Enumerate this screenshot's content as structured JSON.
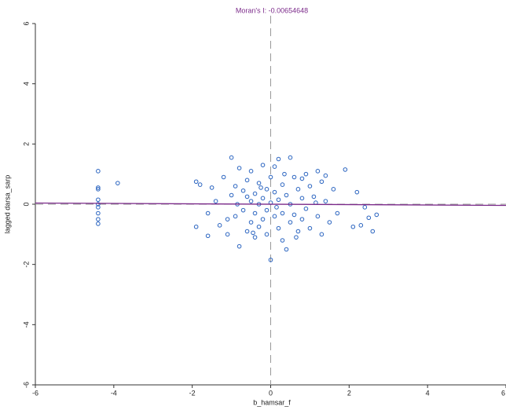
{
  "chart_data": {
    "type": "scatter",
    "title": "Moran's I: -0.00654648",
    "title_color": "#7b2a8a",
    "x_label": "b_hamsar_f",
    "y_label": "lagged darsa_sarp",
    "x": [
      -4.4,
      -4.4,
      -4.4,
      -4.4,
      -4.4,
      -4.4,
      -4.4,
      -4.4,
      -4.4,
      -3.9,
      -1.9,
      -1.8,
      -1.9,
      -1.6,
      -1.5,
      -1.4,
      -1.3,
      -1.2,
      -1.1,
      -1.0,
      -1.0,
      -0.9,
      -0.9,
      -0.8,
      -0.8,
      -0.7,
      -0.7,
      -0.6,
      -0.6,
      -0.5,
      -0.5,
      -0.5,
      -0.4,
      -0.4,
      -0.4,
      -0.3,
      -0.3,
      -0.3,
      -0.2,
      -0.2,
      -0.2,
      -0.1,
      -0.1,
      -0.1,
      0,
      0,
      0,
      0.1,
      0.1,
      0.1,
      0.2,
      0.2,
      0.2,
      0.3,
      0.3,
      0.3,
      0.4,
      0.4,
      0.5,
      0.5,
      0.5,
      0.6,
      0.6,
      0.7,
      0.7,
      0.8,
      0.8,
      0.9,
      0.9,
      1.0,
      1.0,
      1.1,
      1.2,
      1.2,
      1.3,
      1.3,
      1.4,
      1.5,
      1.6,
      1.7,
      1.9,
      2.1,
      2.2,
      2.3,
      2.4,
      2.5,
      2.6,
      2.7,
      -1.1,
      1.4,
      -0.6,
      0.8,
      -1.6,
      0.15,
      -0.25,
      0.35,
      0.65,
      -0.45,
      1.15,
      -0.85
    ],
    "values": [
      1.1,
      0.55,
      0.5,
      0.15,
      0,
      -0.1,
      -0.3,
      -0.5,
      -0.65,
      0.7,
      0.75,
      0.65,
      -0.75,
      -0.3,
      0.55,
      0.1,
      -0.7,
      0.9,
      -1.0,
      1.55,
      0.3,
      -0.4,
      0.6,
      -1.4,
      1.2,
      -0.2,
      0.45,
      -0.9,
      0.8,
      0.1,
      -0.6,
      1.1,
      0.35,
      -0.3,
      -1.1,
      0.7,
      0,
      -0.75,
      1.3,
      0.2,
      -0.5,
      0.5,
      -0.2,
      -1.0,
      -1.85,
      0.9,
      0.05,
      1.25,
      -0.4,
      0.4,
      1.5,
      -0.8,
      0.15,
      0.65,
      -0.3,
      -1.2,
      -1.5,
      0.3,
      1.55,
      -0.6,
      0,
      0.9,
      -0.35,
      0.5,
      -0.9,
      0.2,
      -0.5,
      1.0,
      -0.15,
      0.6,
      -0.8,
      0.25,
      1.1,
      -0.4,
      0.75,
      -1.0,
      0.1,
      -0.6,
      0.5,
      -0.3,
      1.15,
      -0.75,
      0.4,
      -0.7,
      -0.1,
      -0.45,
      -0.9,
      -0.35,
      -0.5,
      0.95,
      0.25,
      0.85,
      -1.05,
      -0.1,
      0.55,
      1.0,
      -1.1,
      -0.95,
      0.05,
      0
    ],
    "color": "#2a64c0",
    "fit_line": {
      "slope": -0.00654648,
      "intercept": 0,
      "color": "#7b2a8a"
    },
    "xlim": [
      -6,
      6
    ],
    "ylim": [
      -6,
      6
    ],
    "xticks": [
      -6,
      -4,
      -2,
      0,
      2,
      4,
      6
    ],
    "yticks": [
      -6,
      -4,
      -2,
      0,
      2,
      4,
      6
    ]
  }
}
